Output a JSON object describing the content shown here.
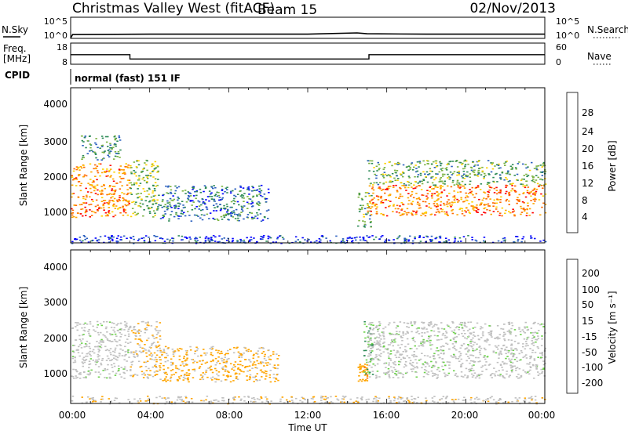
{
  "header": {
    "station": "Christmas Valley West (fitACF)",
    "beam": "Beam 15",
    "date": "02/Nov/2013"
  },
  "noise_panel": {
    "left_label": "N.Sky",
    "right_label": "N.Search",
    "left_ticks": [
      "10^5",
      "10^0"
    ],
    "right_ticks": [
      "10^5",
      "10^0"
    ]
  },
  "freq_panel": {
    "left_label_1": "Freq.",
    "left_label_2": "[MHz]",
    "right_label": "Nave",
    "left_ticks": [
      "18",
      "8"
    ],
    "right_ticks": [
      "60",
      "0"
    ]
  },
  "cpid_panel": {
    "label": "CPID",
    "value": "normal (fast) 151 IF"
  },
  "power_panel": {
    "ylabel": "Slant Range [km]",
    "yticks": [
      "4000",
      "3000",
      "2000",
      "1000"
    ],
    "colorbar_title": "Power [dB]",
    "colorbar_ticks": [
      "28",
      "24",
      "20",
      "16",
      "12",
      "8",
      "4"
    ]
  },
  "velocity_panel": {
    "ylabel": "Slant Range [km]",
    "yticks": [
      "4000",
      "3000",
      "2000",
      "1000"
    ],
    "colorbar_title": "Velocity [m s⁻¹]",
    "colorbar_ticks": [
      "200",
      "100",
      "50",
      "15",
      "-15",
      "-50",
      "-100",
      "-200"
    ]
  },
  "xaxis": {
    "label": "Time UT",
    "ticks": [
      "00:00",
      "04:00",
      "08:00",
      "12:00",
      "16:00",
      "20:00",
      "00:00"
    ]
  },
  "colors": {
    "power_scale": [
      "#0000ff",
      "#2a5fbf",
      "#2e8b57",
      "#7cb342",
      "#ffd200",
      "#ffa500",
      "#ff6a00",
      "#ff0000"
    ],
    "velocity_scale": [
      "#0000c8",
      "#2a6fd0",
      "#2e8b57",
      "#6cd24a",
      "#c0c0c0",
      "#c0c0c0",
      "#ffa500",
      "#ff6a00",
      "#ff0000"
    ]
  },
  "chart_data": {
    "type": "heatmap",
    "time_range_hours": [
      0,
      24
    ],
    "range_axis_km": [
      180,
      4500
    ],
    "noise_sky_log10": [
      [
        0,
        0.1
      ],
      [
        0.1,
        0.9
      ],
      [
        4,
        1
      ],
      [
        8,
        1
      ],
      [
        12,
        1
      ],
      [
        14.5,
        1.3
      ],
      [
        15,
        1.1
      ],
      [
        18,
        1
      ],
      [
        24,
        1
      ]
    ],
    "frequency_mhz": [
      [
        0,
        12.5
      ],
      [
        3,
        12.5
      ],
      [
        3,
        10.5
      ],
      [
        15.1,
        10.5
      ],
      [
        15.1,
        12.5
      ],
      [
        24,
        12.5
      ]
    ],
    "power_regions": [
      {
        "t": [
          0.0,
          3.0
        ],
        "range_km": [
          900,
          2400
        ],
        "level_db": 26
      },
      {
        "t": [
          0.5,
          2.5
        ],
        "range_km": [
          2500,
          3200
        ],
        "level_db": 12
      },
      {
        "t": [
          3.0,
          4.4
        ],
        "range_km": [
          900,
          2500
        ],
        "level_db": 16
      },
      {
        "t": [
          4.4,
          10.0
        ],
        "range_km": [
          800,
          1800
        ],
        "level_db": 10
      },
      {
        "t": [
          14.5,
          15.2
        ],
        "range_km": [
          600,
          1600
        ],
        "level_db": 14
      },
      {
        "t": [
          15.0,
          24.0
        ],
        "range_km": [
          950,
          1800
        ],
        "level_db": 26
      },
      {
        "t": [
          15.0,
          24.0
        ],
        "range_km": [
          1800,
          2500
        ],
        "level_db": 14
      },
      {
        "t": [
          0.0,
          24.0
        ],
        "range_km": [
          180,
          400
        ],
        "level_db": 6
      }
    ],
    "velocity_regions": [
      {
        "t": [
          0.0,
          3.0
        ],
        "range_km": [
          900,
          2500
        ],
        "velocity_ms": 0
      },
      {
        "t": [
          3.0,
          4.5
        ],
        "range_km": [
          900,
          2500
        ],
        "velocity_ms": -30
      },
      {
        "t": [
          4.5,
          10.5
        ],
        "range_km": [
          800,
          1800
        ],
        "velocity_ms": -40
      },
      {
        "t": [
          14.5,
          15.0
        ],
        "range_km": [
          800,
          1300
        ],
        "velocity_ms": -60
      },
      {
        "t": [
          14.8,
          15.3
        ],
        "range_km": [
          1000,
          2500
        ],
        "velocity_ms": 30
      },
      {
        "t": [
          15.0,
          24.0
        ],
        "range_km": [
          900,
          2500
        ],
        "velocity_ms": 0
      },
      {
        "t": [
          0.0,
          24.0
        ],
        "range_km": [
          180,
          400
        ],
        "velocity_ms": -20
      }
    ]
  }
}
